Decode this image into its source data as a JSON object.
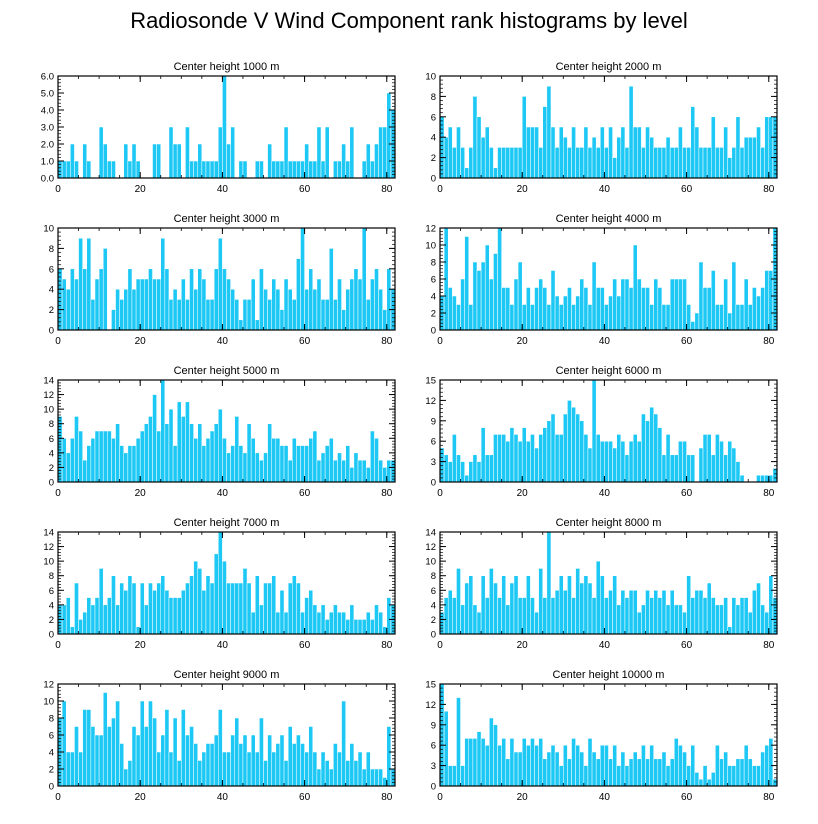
{
  "title": "Radiosonde V Wind Component rank histograms by level",
  "bar_color": "#1ec8f5",
  "axis_color": "#000000",
  "chart_data": [
    {
      "type": "bar",
      "title": "Center height 1000 m",
      "xlim": [
        0,
        82
      ],
      "xticks": [
        0,
        20,
        40,
        60,
        80
      ],
      "ylim": [
        0,
        6
      ],
      "yticks": [
        0,
        1,
        2,
        3,
        4,
        5,
        6
      ],
      "ytick_labels": [
        "0.0",
        "1.0",
        "2.0",
        "3.0",
        "4.0",
        "5.0",
        "6.0"
      ],
      "values": [
        1,
        1,
        1,
        2,
        1,
        0,
        2,
        1,
        0,
        0,
        3,
        2,
        1,
        1,
        0,
        0,
        2,
        1,
        2,
        1,
        0,
        0,
        0,
        2,
        2,
        0,
        0,
        3,
        2,
        2,
        0,
        3,
        1,
        1,
        2,
        1,
        1,
        1,
        1,
        3,
        6,
        2,
        3,
        0,
        1,
        1,
        0,
        0,
        1,
        1,
        0,
        2,
        1,
        1,
        1,
        3,
        1,
        1,
        1,
        1,
        2,
        1,
        1,
        3,
        1,
        3,
        0,
        1,
        1,
        2,
        1,
        3,
        0,
        0,
        1,
        2,
        1,
        2,
        3,
        3,
        5,
        4
      ]
    },
    {
      "type": "bar",
      "title": "Center height 2000 m",
      "xlim": [
        0,
        82
      ],
      "xticks": [
        0,
        20,
        40,
        60,
        80
      ],
      "ylim": [
        0,
        10
      ],
      "yticks": [
        0,
        2,
        4,
        6,
        8,
        10
      ],
      "ytick_labels": [
        "0",
        "2",
        "4",
        "6",
        "8",
        "10"
      ],
      "values": [
        6,
        4,
        5,
        3,
        5,
        3,
        1,
        3,
        8,
        6,
        4,
        5,
        3,
        1,
        3,
        3,
        3,
        3,
        3,
        3,
        8,
        5,
        5,
        5,
        3,
        7,
        9,
        5,
        3,
        5,
        4,
        3,
        5,
        3,
        3,
        5,
        3,
        4,
        3,
        5,
        3,
        5,
        2,
        4,
        5,
        3,
        9,
        5,
        5,
        3,
        5,
        4,
        3,
        3,
        3,
        4,
        3,
        3,
        5,
        3,
        3,
        7,
        5,
        3,
        3,
        3,
        6,
        3,
        3,
        5,
        2,
        3,
        6,
        3,
        4,
        4,
        4,
        5,
        3,
        6,
        6,
        6
      ]
    },
    {
      "type": "bar",
      "title": "Center height 3000 m",
      "xlim": [
        0,
        82
      ],
      "xticks": [
        0,
        20,
        40,
        60,
        80
      ],
      "ylim": [
        0,
        10
      ],
      "yticks": [
        0,
        2,
        4,
        6,
        8,
        10
      ],
      "ytick_labels": [
        "0",
        "2",
        "4",
        "6",
        "8",
        "10"
      ],
      "values": [
        6,
        5,
        4,
        6,
        5,
        9,
        6,
        9,
        3,
        5,
        6,
        8,
        0,
        2,
        4,
        3,
        4,
        6,
        4,
        5,
        5,
        5,
        6,
        5,
        5,
        9,
        6,
        3,
        4,
        3,
        5,
        3,
        6,
        4,
        6,
        5,
        3,
        3,
        6,
        9,
        6,
        5,
        4,
        3,
        1,
        3,
        3,
        5,
        1,
        6,
        4,
        3,
        5,
        4,
        2,
        5,
        4,
        3,
        7,
        10,
        4,
        6,
        4,
        5,
        3,
        3,
        8,
        3,
        5,
        2,
        4,
        5,
        6,
        5,
        10,
        3,
        5,
        6,
        4,
        2,
        6,
        4
      ]
    },
    {
      "type": "bar",
      "title": "Center height 4000 m",
      "xlim": [
        0,
        82
      ],
      "xticks": [
        0,
        20,
        40,
        60,
        80
      ],
      "ylim": [
        0,
        12
      ],
      "yticks": [
        0,
        2,
        4,
        6,
        8,
        10,
        12
      ],
      "ytick_labels": [
        "0",
        "2",
        "4",
        "6",
        "8",
        "10",
        "12"
      ],
      "values": [
        4,
        12,
        5,
        4,
        3,
        6,
        11,
        3,
        8,
        7,
        8,
        10,
        6,
        9,
        12,
        5,
        5,
        3,
        6,
        8,
        3,
        5,
        3,
        5,
        6,
        5,
        3,
        7,
        4,
        3,
        4,
        5,
        3,
        4,
        6,
        5,
        3,
        8,
        5,
        5,
        3,
        4,
        6,
        4,
        6,
        6,
        5,
        10,
        6,
        5,
        5,
        3,
        6,
        5,
        3,
        3,
        6,
        6,
        6,
        6,
        3,
        1,
        2,
        8,
        5,
        5,
        7,
        3,
        3,
        6,
        2,
        8,
        3,
        3,
        6,
        3,
        5,
        4,
        5,
        7,
        7,
        12
      ]
    },
    {
      "type": "bar",
      "title": "Center height 5000 m",
      "xlim": [
        0,
        82
      ],
      "xticks": [
        0,
        20,
        40,
        60,
        80
      ],
      "ylim": [
        0,
        14
      ],
      "yticks": [
        0,
        2,
        4,
        6,
        8,
        10,
        12,
        14
      ],
      "ytick_labels": [
        "0",
        "2",
        "4",
        "6",
        "8",
        "10",
        "12",
        "14"
      ],
      "values": [
        9,
        6,
        4,
        6,
        9,
        7,
        3,
        5,
        6,
        7,
        7,
        7,
        7,
        6,
        8,
        5,
        4,
        5,
        5,
        6,
        7,
        8,
        9,
        12,
        7,
        14,
        8,
        10,
        5,
        11,
        9,
        11,
        8,
        6,
        8,
        5,
        6,
        7,
        8,
        10,
        6,
        4,
        5,
        9,
        5,
        4,
        8,
        6,
        4,
        3,
        4,
        8,
        6,
        6,
        5,
        5,
        3,
        6,
        5,
        5,
        5,
        6,
        7,
        3,
        4,
        5,
        6,
        3,
        4,
        3,
        5,
        2,
        4,
        3,
        3,
        2,
        7,
        6,
        3,
        2,
        3,
        3
      ]
    },
    {
      "type": "bar",
      "title": "Center height 6000 m",
      "xlim": [
        0,
        82
      ],
      "xticks": [
        0,
        20,
        40,
        60,
        80
      ],
      "ylim": [
        0,
        15
      ],
      "yticks": [
        0,
        3,
        6,
        9,
        12,
        15
      ],
      "ytick_labels": [
        "0",
        "3",
        "6",
        "9",
        "12",
        "15"
      ],
      "values": [
        5,
        4,
        3,
        7,
        4,
        3,
        1,
        3,
        4,
        3,
        8,
        4,
        4,
        7,
        7,
        7,
        6,
        8,
        7,
        6,
        8,
        6,
        7,
        5,
        7,
        8,
        9,
        10,
        7,
        7,
        10,
        12,
        11,
        10,
        9,
        7,
        5,
        15,
        7,
        6,
        6,
        6,
        5,
        7,
        6,
        4,
        6,
        7,
        6,
        10,
        9,
        11,
        10,
        8,
        4,
        7,
        4,
        4,
        6,
        6,
        4,
        4,
        0,
        5,
        7,
        7,
        4,
        7,
        6,
        4,
        6,
        5,
        3,
        1,
        0,
        0,
        0,
        1,
        1,
        1,
        1,
        2
      ]
    },
    {
      "type": "bar",
      "title": "Center height 7000 m",
      "xlim": [
        0,
        82
      ],
      "xticks": [
        0,
        20,
        40,
        60,
        80
      ],
      "ylim": [
        0,
        14
      ],
      "yticks": [
        0,
        2,
        4,
        6,
        8,
        10,
        12,
        14
      ],
      "ytick_labels": [
        "0",
        "2",
        "4",
        "6",
        "8",
        "10",
        "12",
        "14"
      ],
      "values": [
        4,
        4,
        5,
        1,
        7,
        2,
        3,
        5,
        4,
        5,
        9,
        4,
        5,
        8,
        4,
        7,
        6,
        8,
        7,
        1,
        7,
        4,
        7,
        6,
        7,
        8,
        6,
        5,
        5,
        5,
        6,
        7,
        8,
        10,
        9,
        6,
        8,
        7,
        11,
        14,
        10,
        7,
        7,
        7,
        7,
        9,
        7,
        3,
        8,
        4,
        7,
        7,
        8,
        3,
        6,
        3,
        7,
        8,
        7,
        3,
        5,
        6,
        4,
        3,
        4,
        2,
        3,
        4,
        3,
        3,
        2,
        4,
        2,
        2,
        2,
        3,
        2,
        4,
        3,
        1,
        5,
        4
      ]
    },
    {
      "type": "bar",
      "title": "Center height 8000 m",
      "xlim": [
        0,
        82
      ],
      "xticks": [
        0,
        20,
        40,
        60,
        80
      ],
      "ylim": [
        0,
        14
      ],
      "yticks": [
        0,
        2,
        4,
        6,
        8,
        10,
        12,
        14
      ],
      "ytick_labels": [
        "0",
        "2",
        "4",
        "6",
        "8",
        "10",
        "12",
        "14"
      ],
      "values": [
        3,
        5,
        6,
        5,
        9,
        4,
        7,
        8,
        4,
        3,
        8,
        5,
        9,
        7,
        5,
        8,
        4,
        7,
        8,
        5,
        5,
        8,
        5,
        3,
        9,
        5,
        14,
        5,
        6,
        8,
        6,
        8,
        5,
        9,
        7,
        8,
        7,
        5,
        10,
        8,
        5,
        6,
        8,
        4,
        6,
        5,
        6,
        6,
        3,
        4,
        6,
        5,
        6,
        5,
        6,
        4,
        6,
        4,
        4,
        3,
        8,
        5,
        6,
        6,
        5,
        7,
        5,
        4,
        4,
        5,
        1,
        5,
        4,
        5,
        5,
        3,
        6,
        7,
        4,
        3,
        8,
        5
      ]
    },
    {
      "type": "bar",
      "title": "Center height 9000 m",
      "xlim": [
        0,
        82
      ],
      "xticks": [
        0,
        20,
        40,
        60,
        80
      ],
      "ylim": [
        0,
        12
      ],
      "yticks": [
        0,
        2,
        4,
        6,
        8,
        10,
        12
      ],
      "ytick_labels": [
        "0",
        "2",
        "4",
        "6",
        "8",
        "10",
        "12"
      ],
      "values": [
        8,
        10,
        4,
        4,
        7,
        4,
        9,
        9,
        7,
        6,
        6,
        11,
        7,
        8,
        10,
        5,
        2,
        3,
        7,
        6,
        10,
        7,
        10,
        8,
        4,
        6,
        9,
        4,
        8,
        3,
        9,
        6,
        7,
        5,
        3,
        4,
        5,
        5,
        6,
        9,
        4,
        4,
        6,
        8,
        5,
        6,
        4,
        6,
        4,
        8,
        3,
        6,
        4,
        5,
        6,
        3,
        7,
        5,
        6,
        5,
        4,
        7,
        4,
        2,
        4,
        3,
        2,
        5,
        4,
        10,
        3,
        5,
        3,
        4,
        2,
        4,
        2,
        2,
        2,
        1,
        7,
        2
      ]
    },
    {
      "type": "bar",
      "title": "Center height 10000 m",
      "xlim": [
        0,
        82
      ],
      "xticks": [
        0,
        20,
        40,
        60,
        80
      ],
      "ylim": [
        0,
        15
      ],
      "yticks": [
        0,
        3,
        6,
        9,
        12,
        15
      ],
      "ytick_labels": [
        "0",
        "3",
        "6",
        "9",
        "12",
        "15"
      ],
      "values": [
        15,
        11,
        3,
        3,
        13,
        3,
        7,
        7,
        7,
        8,
        7,
        6,
        10,
        9,
        6,
        7,
        4,
        7,
        5,
        5,
        7,
        6,
        7,
        6,
        7,
        4,
        5,
        6,
        5,
        3,
        6,
        4,
        7,
        6,
        5,
        3,
        7,
        5,
        4,
        6,
        6,
        4,
        6,
        3,
        5,
        3,
        4,
        5,
        4,
        6,
        4,
        6,
        4,
        4,
        5,
        3,
        4,
        7,
        6,
        5,
        3,
        6,
        2,
        1,
        3,
        1,
        2,
        6,
        4,
        5,
        3,
        3,
        4,
        4,
        6,
        4,
        3,
        3,
        5,
        6,
        7,
        1
      ]
    }
  ]
}
